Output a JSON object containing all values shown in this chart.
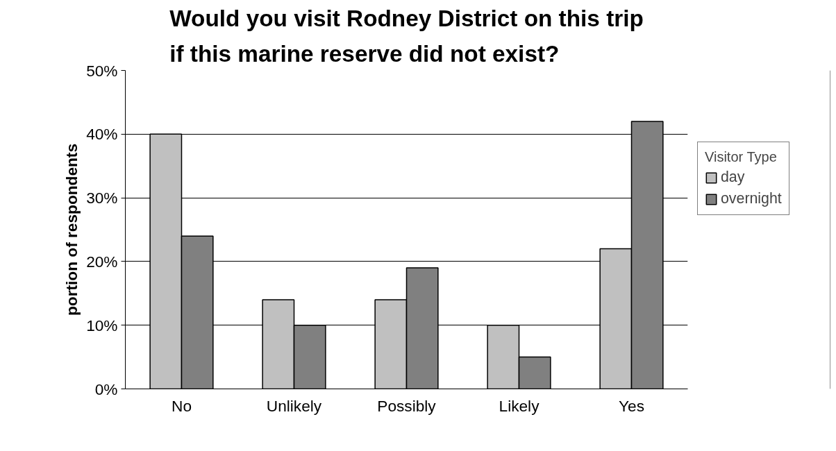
{
  "chart_data": {
    "type": "bar",
    "title": "Would you visit Rodney District on this trip if this marine reserve did not exist?",
    "ylabel": "portion of respondents",
    "legend_title": "Visitor Type",
    "categories": [
      "No",
      "Unlikely",
      "Possibly",
      "Likely",
      "Yes"
    ],
    "series": [
      {
        "name": "day",
        "color": "#c0c0c0",
        "values": [
          40,
          14,
          14,
          10,
          22
        ]
      },
      {
        "name": "overnight",
        "color": "#808080",
        "values": [
          24,
          10,
          19,
          5,
          42
        ]
      }
    ],
    "ylim": [
      0,
      50
    ],
    "yticks": [
      {
        "value": 0,
        "label": "0%"
      },
      {
        "value": 10,
        "label": "10%"
      },
      {
        "value": 20,
        "label": "20%"
      },
      {
        "value": 30,
        "label": "30%"
      },
      {
        "value": 40,
        "label": "40%"
      },
      {
        "value": 50,
        "label": "50%"
      }
    ],
    "grid": "y",
    "legend": "right"
  }
}
